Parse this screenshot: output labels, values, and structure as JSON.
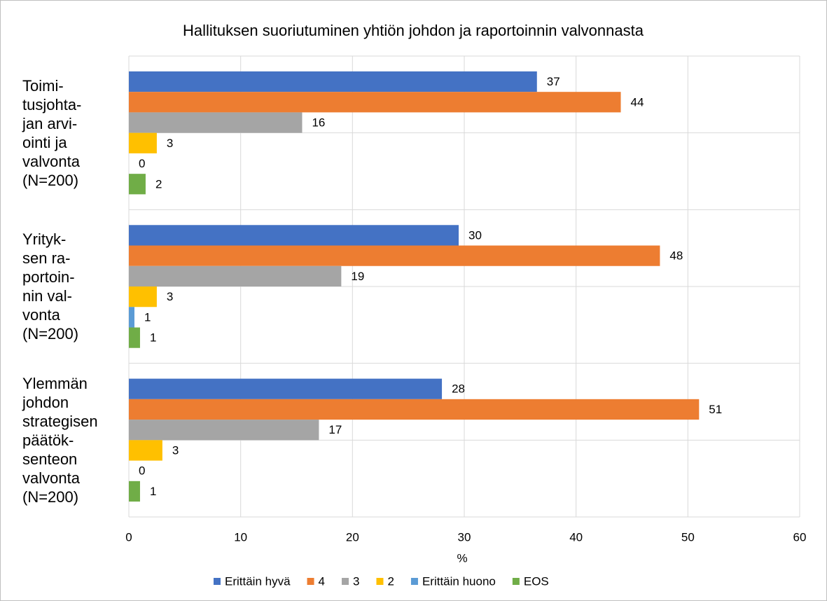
{
  "chart_data": {
    "type": "bar",
    "orientation": "horizontal",
    "title": "Hallituksen suoriutuminen yhtiön johdon ja raportoinnin valvonnasta",
    "xlabel": "%",
    "categories": [
      "Toimi-\ntusjohta-\njan arvi-\nointi ja\nvalvonta\n(N=200)",
      "Yrityk-\nsen ra-\nportoin-\nnin val-\nvonta\n(N=200)",
      "Ylemmän\njohdon\nstrategisen\npäätök-\nsenteon\nvalvonta\n(N=200)"
    ],
    "series": [
      {
        "name": "Erittäin hyvä",
        "color": "#4472c4",
        "values": [
          36.5,
          29.5,
          28
        ],
        "value_labels": [
          "37",
          "30",
          "28"
        ]
      },
      {
        "name": "4",
        "color": "#ed7d31",
        "values": [
          44,
          47.5,
          51
        ],
        "value_labels": [
          "44",
          "48",
          "51"
        ]
      },
      {
        "name": "3",
        "color": "#a5a5a5",
        "values": [
          15.5,
          19,
          17
        ],
        "value_labels": [
          "16",
          "19",
          "17"
        ]
      },
      {
        "name": "2",
        "color": "#ffc000",
        "values": [
          2.5,
          2.5,
          3
        ],
        "value_labels": [
          "3",
          "3",
          "3"
        ]
      },
      {
        "name": "Erittäin huono",
        "color": "#5b9bd5",
        "values": [
          0,
          0.5,
          0
        ],
        "value_labels": [
          "0",
          "1",
          "0"
        ]
      },
      {
        "name": "EOS",
        "color": "#70ad47",
        "values": [
          1.5,
          1,
          1
        ],
        "value_labels": [
          "2",
          "1",
          "1"
        ]
      }
    ],
    "xlim": [
      0,
      60
    ],
    "xticks": [
      0,
      10,
      20,
      30,
      40,
      50,
      60
    ],
    "grid": true,
    "legend": "bottom"
  }
}
